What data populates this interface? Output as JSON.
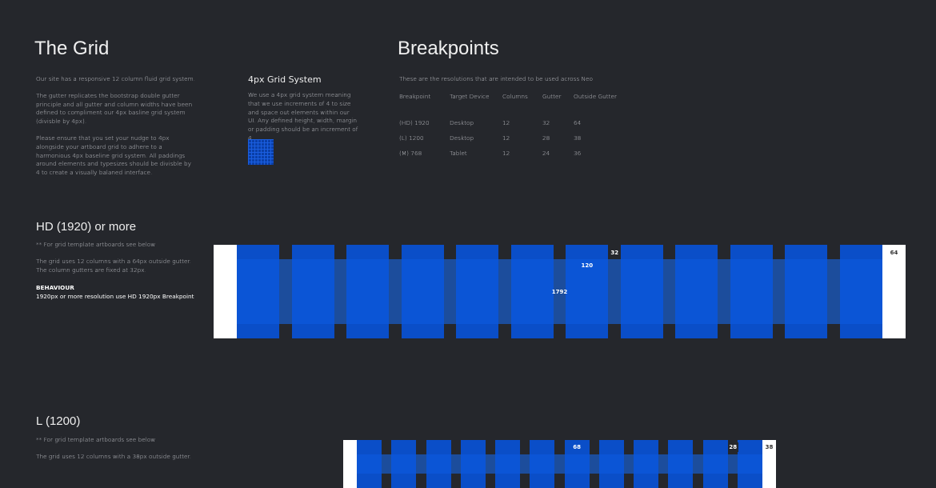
{
  "grid": {
    "title": "The Grid",
    "paragraphs": [
      "Our site has a responsive 12 column fluid grid system.",
      "The gutter replicates the bootstrap double gutter principle and all gutter and column widths have been defined to compliment our 4px basline grid system (divisble by 4px).",
      "Please ensure that you set your nudge to 4px alongside your artboard grid to adhere to a harmonious 4px baseline grid system. All paddings around elements and typesizes should be divisble by 4 to create a visually balaned interface."
    ]
  },
  "system": {
    "title": "4px Grid System",
    "text": "We use a 4px grid system meaning that we use increments of 4 to size and space out elements within our UI. Any defined height, width, margin or padding should be an increment of 4."
  },
  "breakpoints": {
    "title": "Breakpoints",
    "intro": "These are the resolutions that are intended to be used across Neo",
    "header": [
      "Breakpoint",
      "Target Device",
      "Columns",
      "Gutter",
      "Outside Gutter"
    ],
    "rows": [
      [
        "(HD) 1920",
        "Desktop",
        12,
        32,
        64
      ],
      [
        "(L) 1200",
        "Desktop",
        12,
        28,
        38
      ],
      [
        "(M) 768",
        "Tablet",
        12,
        24,
        36
      ]
    ]
  },
  "hd": {
    "title": "HD (1920) or more",
    "note": "** For grid template artboards see below",
    "text": [
      "The grid uses 12 columns with a 64px outside gutter.",
      "The column gutters are fixed at 32px."
    ],
    "behaviour_label": "BEHAVIOUR",
    "behaviour": "1920px or more resolution use HD 1920px Breakpoint",
    "labels": {
      "gutter": 32,
      "column": 120,
      "content": 1792,
      "outside": 64
    }
  },
  "l": {
    "title": "L (1200)",
    "note": "** For grid template artboards see below",
    "text": "The grid uses 12 columns with a 38px outside gutter.",
    "labels": {
      "column": 68,
      "gutter": 28,
      "outside": 38
    }
  }
}
